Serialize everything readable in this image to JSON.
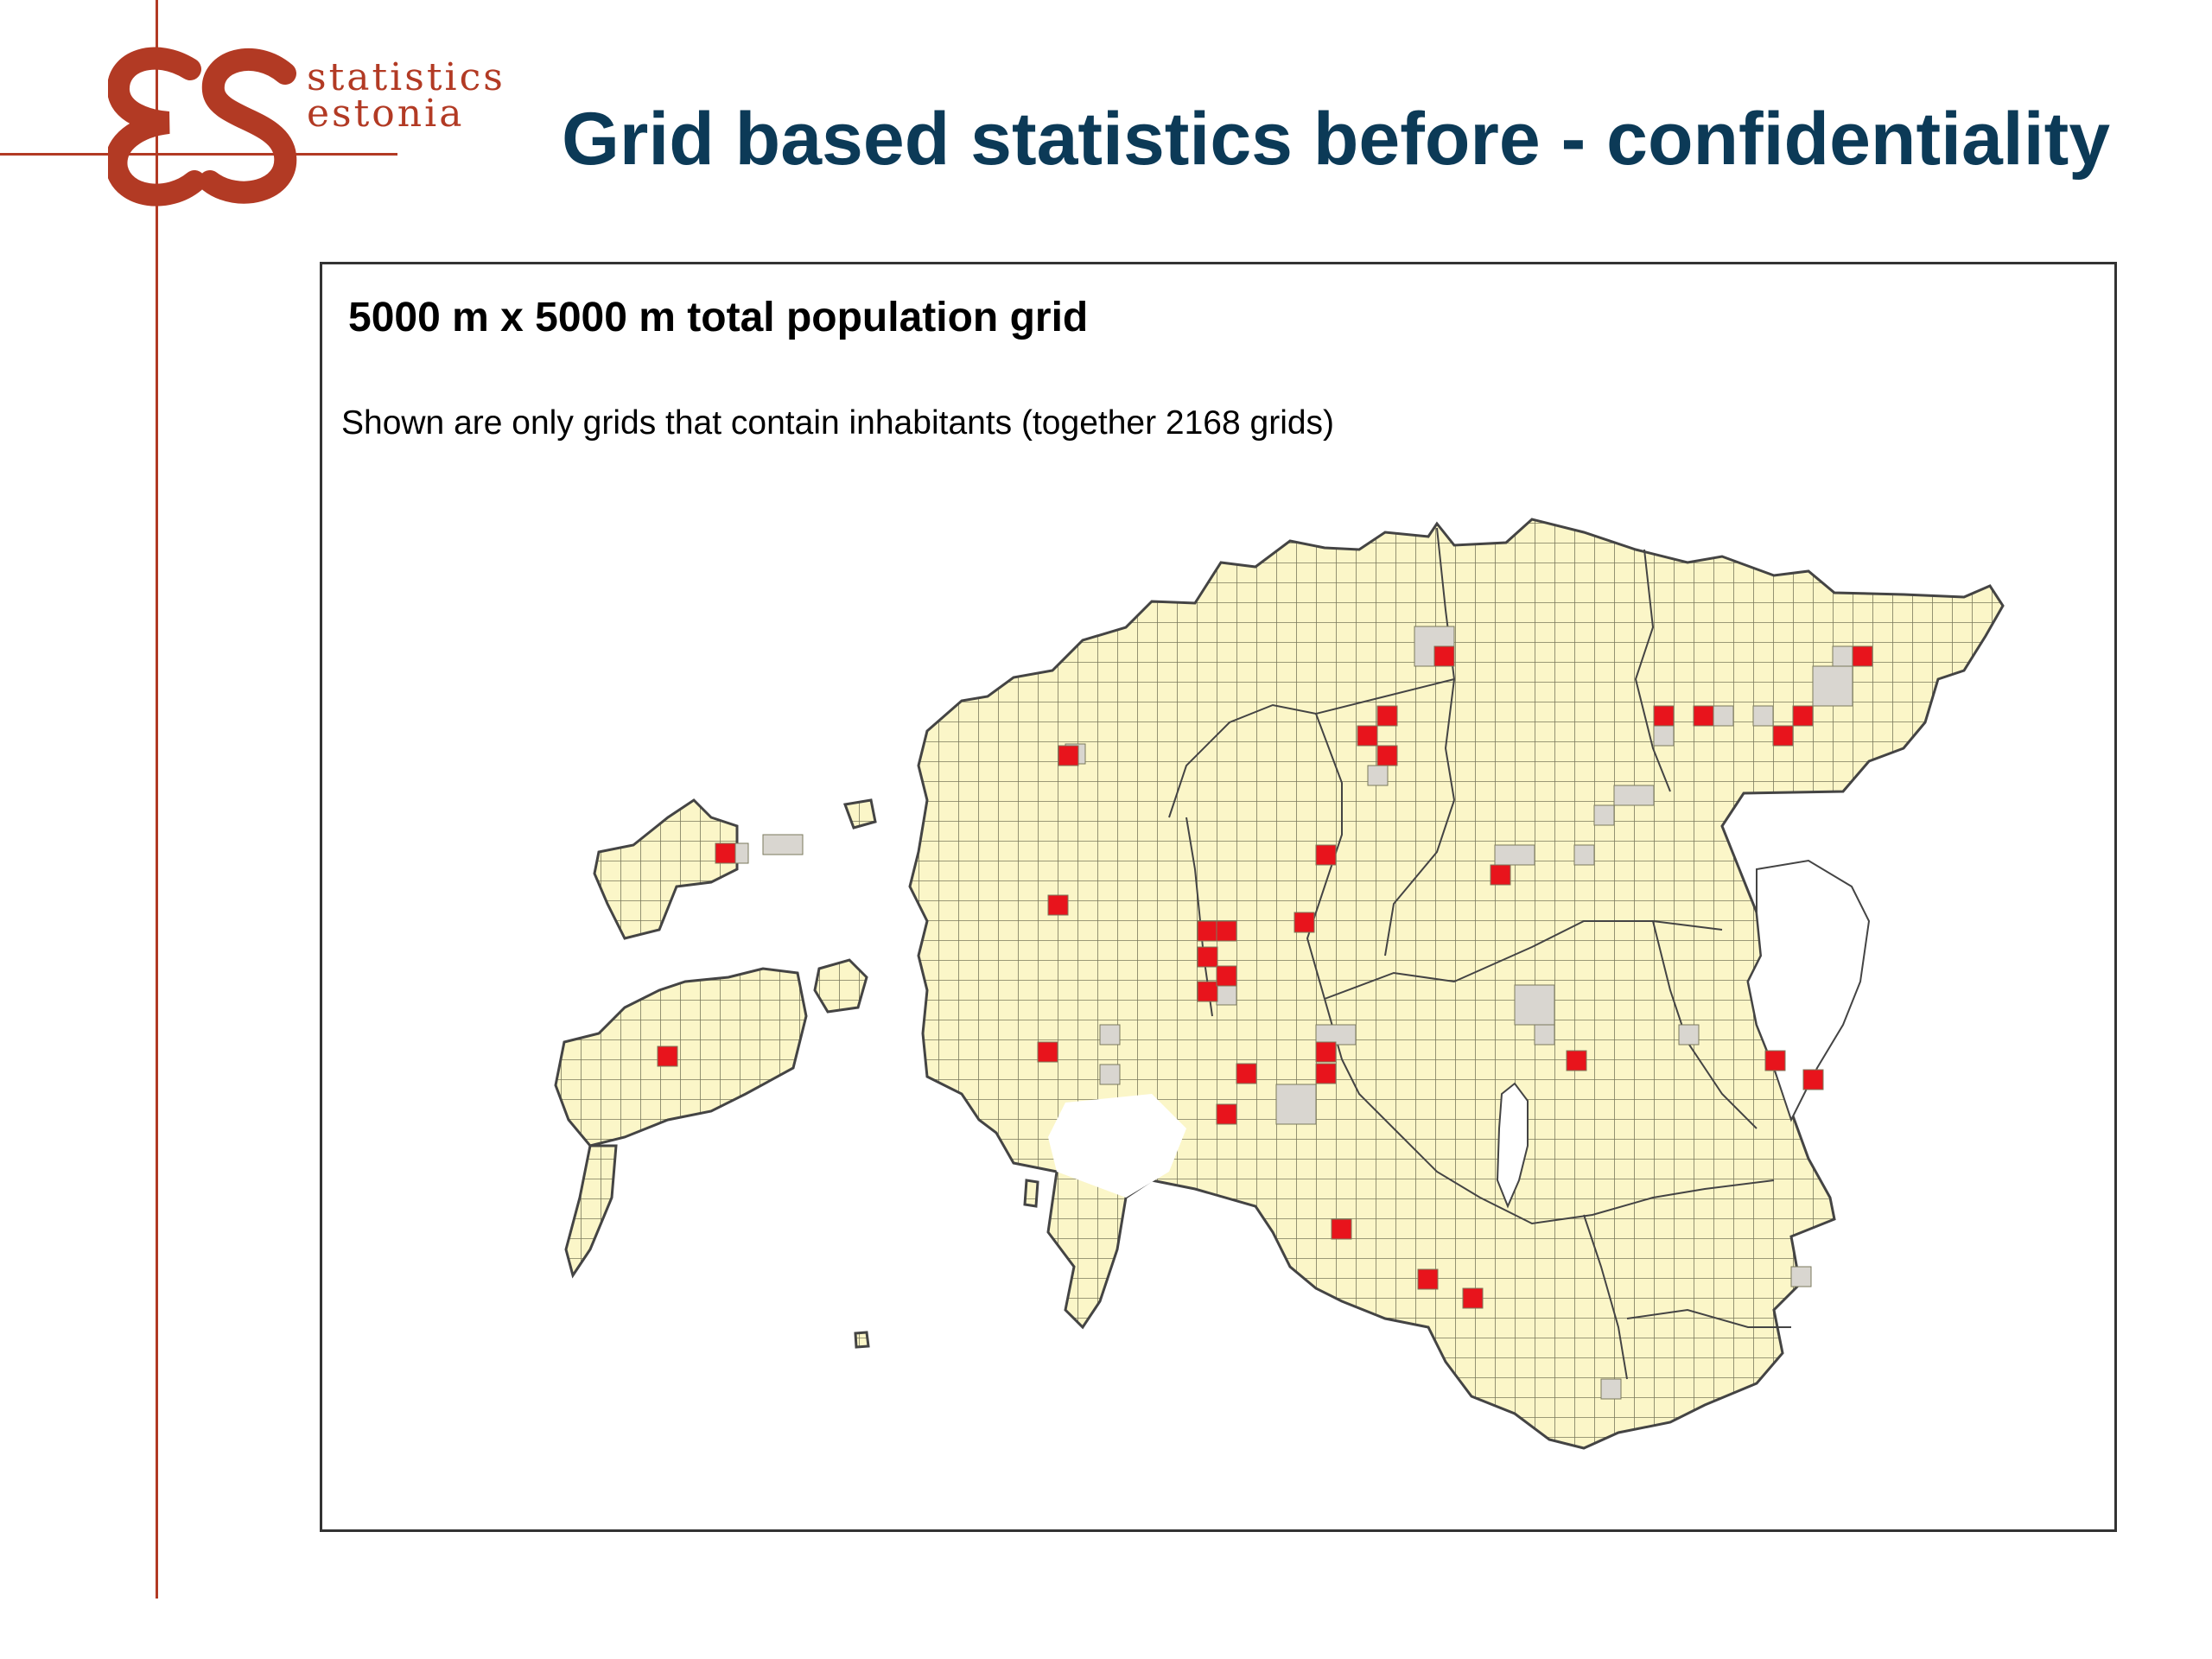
{
  "brand": {
    "logo_text": "ES",
    "word_1": "statistics",
    "word_2": "estonia",
    "color": "#b23a24"
  },
  "slide": {
    "title": "Grid based statistics before - confidentiality",
    "title_color": "#0c3a57"
  },
  "map": {
    "title": "5000 m x 5000 m total population grid",
    "subtitle": "Shown are only grids that contain inhabitants (together 2168 grids)",
    "colors": {
      "cell_fill": "#fbf6c8",
      "cell_line": "#7b7a5c",
      "outline": "#444444",
      "confidential_fill": "#d9d6d0",
      "highlight_fill": "#e8141c"
    }
  }
}
